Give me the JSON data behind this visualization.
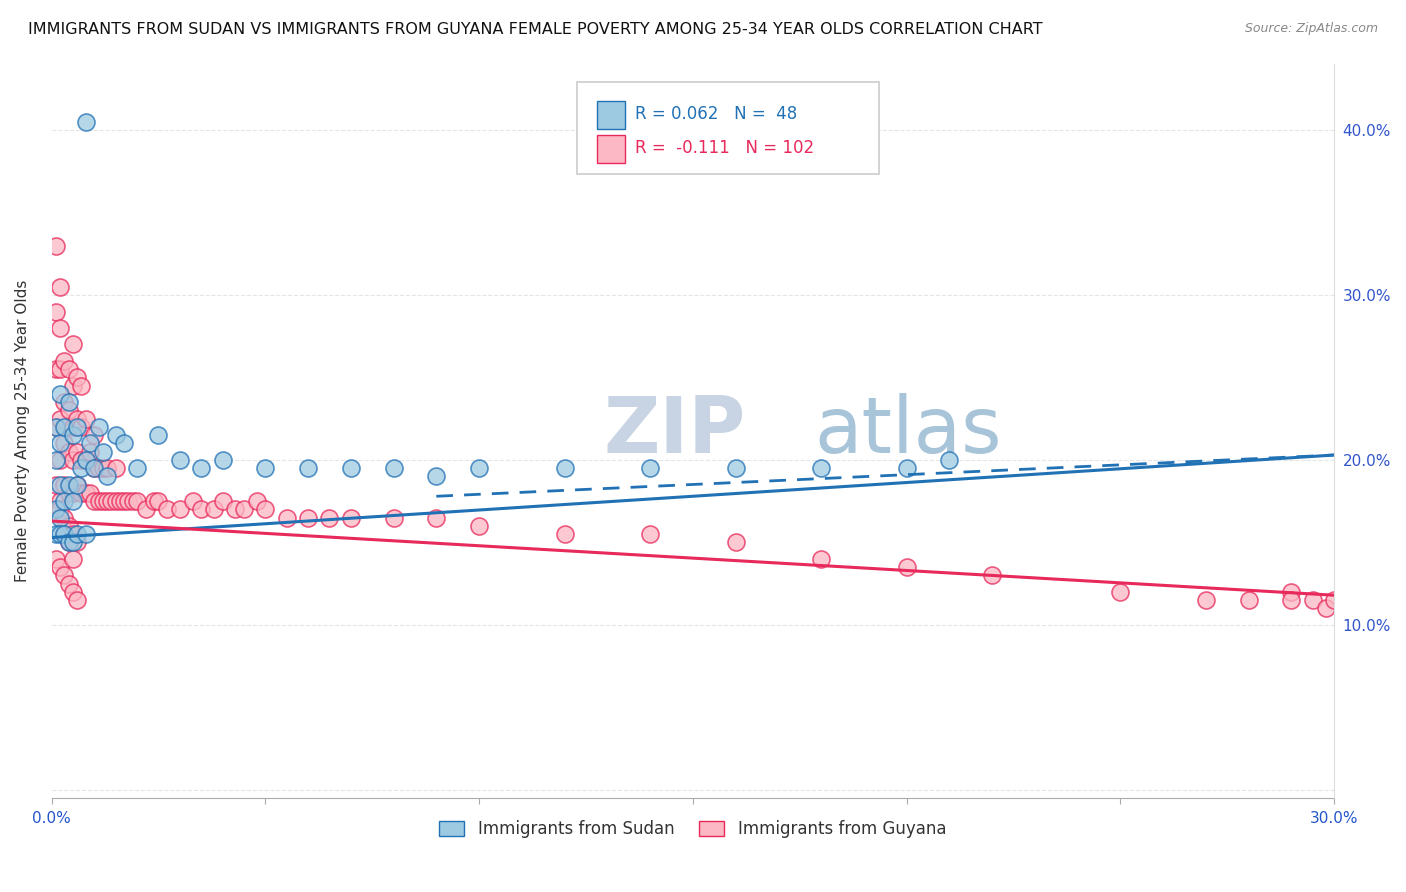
{
  "title": "IMMIGRANTS FROM SUDAN VS IMMIGRANTS FROM GUYANA FEMALE POVERTY AMONG 25-34 YEAR OLDS CORRELATION CHART",
  "source": "Source: ZipAtlas.com",
  "ylabel": "Female Poverty Among 25-34 Year Olds",
  "xlim": [
    0,
    0.3
  ],
  "ylim": [
    -0.005,
    0.44
  ],
  "color_sudan": "#9ecae1",
  "color_guyana": "#fcb8c4",
  "color_line_sudan": "#2171b5",
  "color_line_guyana": "#e8295b",
  "color_right_ticks": "#3355cc",
  "watermark_zip_color": "#c8d4e0",
  "watermark_atlas_color": "#a8bfd8",
  "title_fontsize": 11.5,
  "axis_label_fontsize": 11,
  "tick_fontsize": 11,
  "legend_fontsize": 12,
  "sudan_trend": [
    0.0,
    0.153,
    0.3,
    0.203
  ],
  "guyana_trend": [
    0.0,
    0.163,
    0.3,
    0.118
  ],
  "sudan_x": [
    0.001,
    0.001,
    0.001,
    0.002,
    0.002,
    0.002,
    0.002,
    0.003,
    0.003,
    0.004,
    0.004,
    0.005,
    0.005,
    0.006,
    0.006,
    0.007,
    0.008,
    0.009,
    0.01,
    0.011,
    0.012,
    0.013,
    0.015,
    0.017,
    0.02,
    0.025,
    0.03,
    0.035,
    0.04,
    0.05,
    0.06,
    0.07,
    0.08,
    0.09,
    0.1,
    0.12,
    0.14,
    0.16,
    0.18,
    0.2,
    0.21,
    0.001,
    0.002,
    0.003,
    0.004,
    0.005,
    0.006,
    0.008
  ],
  "sudan_y": [
    0.17,
    0.2,
    0.22,
    0.165,
    0.185,
    0.21,
    0.24,
    0.175,
    0.22,
    0.185,
    0.235,
    0.175,
    0.215,
    0.185,
    0.22,
    0.195,
    0.2,
    0.21,
    0.195,
    0.22,
    0.205,
    0.19,
    0.215,
    0.21,
    0.195,
    0.215,
    0.2,
    0.195,
    0.2,
    0.195,
    0.195,
    0.195,
    0.195,
    0.19,
    0.195,
    0.195,
    0.195,
    0.195,
    0.195,
    0.195,
    0.2,
    0.155,
    0.155,
    0.155,
    0.15,
    0.15,
    0.155,
    0.155
  ],
  "sudan_high_x": [
    0.008
  ],
  "sudan_high_y": [
    0.405
  ],
  "guyana_x": [
    0.001,
    0.001,
    0.001,
    0.001,
    0.001,
    0.002,
    0.002,
    0.002,
    0.002,
    0.002,
    0.002,
    0.003,
    0.003,
    0.003,
    0.003,
    0.004,
    0.004,
    0.004,
    0.004,
    0.005,
    0.005,
    0.005,
    0.005,
    0.005,
    0.006,
    0.006,
    0.006,
    0.006,
    0.007,
    0.007,
    0.007,
    0.007,
    0.008,
    0.008,
    0.008,
    0.009,
    0.009,
    0.01,
    0.01,
    0.01,
    0.011,
    0.011,
    0.012,
    0.012,
    0.013,
    0.013,
    0.014,
    0.015,
    0.015,
    0.016,
    0.017,
    0.018,
    0.019,
    0.02,
    0.022,
    0.024,
    0.025,
    0.027,
    0.03,
    0.033,
    0.035,
    0.038,
    0.04,
    0.043,
    0.045,
    0.048,
    0.05,
    0.055,
    0.06,
    0.065,
    0.07,
    0.08,
    0.09,
    0.1,
    0.12,
    0.14,
    0.16,
    0.18,
    0.2,
    0.22,
    0.25,
    0.27,
    0.28,
    0.29,
    0.29,
    0.295,
    0.298,
    0.3,
    0.001,
    0.002,
    0.003,
    0.004,
    0.005,
    0.006,
    0.003,
    0.004,
    0.005,
    0.002,
    0.003,
    0.004,
    0.005,
    0.006
  ],
  "guyana_y": [
    0.185,
    0.22,
    0.255,
    0.29,
    0.33,
    0.175,
    0.2,
    0.225,
    0.255,
    0.28,
    0.305,
    0.185,
    0.21,
    0.235,
    0.26,
    0.18,
    0.205,
    0.23,
    0.255,
    0.18,
    0.2,
    0.22,
    0.245,
    0.27,
    0.185,
    0.205,
    0.225,
    0.25,
    0.18,
    0.2,
    0.22,
    0.245,
    0.18,
    0.2,
    0.225,
    0.18,
    0.205,
    0.175,
    0.195,
    0.215,
    0.175,
    0.195,
    0.175,
    0.195,
    0.175,
    0.195,
    0.175,
    0.175,
    0.195,
    0.175,
    0.175,
    0.175,
    0.175,
    0.175,
    0.17,
    0.175,
    0.175,
    0.17,
    0.17,
    0.175,
    0.17,
    0.17,
    0.175,
    0.17,
    0.17,
    0.175,
    0.17,
    0.165,
    0.165,
    0.165,
    0.165,
    0.165,
    0.165,
    0.16,
    0.155,
    0.155,
    0.15,
    0.14,
    0.135,
    0.13,
    0.12,
    0.115,
    0.115,
    0.12,
    0.115,
    0.115,
    0.11,
    0.115,
    0.14,
    0.135,
    0.13,
    0.125,
    0.12,
    0.115,
    0.155,
    0.15,
    0.14,
    0.17,
    0.165,
    0.16,
    0.155,
    0.15
  ]
}
